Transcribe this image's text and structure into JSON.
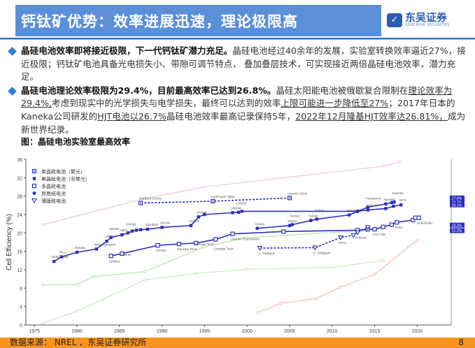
{
  "header": {
    "title": "钙钛矿优势：效率进展迅速，理论极限高",
    "logo_text_cn": "东吴证券",
    "logo_text_en": "SOOCHOW SECURITIES"
  },
  "bullets": [
    {
      "bold": "晶硅电池效率即将接近极限，下一代钙钛矿潜力充足。",
      "text": "晶硅电池经过40余年的发展，实验室转换效率逼近27%，接近极限；钙钛矿电池具备光电损失小、带隙可调节特点， 叠加叠层技术，可实现接近两倍晶硅电池效率，潜力充足。"
    },
    {
      "bold": "晶硅电池理论效率极限为29.4%，目前最高效率已达到26.8%。",
      "t1": "晶硅太阳能电池被俄歇复合限制在",
      "u1": "理论效率为29.4%,",
      "t2": "考虑到现实中的光学损失与电学损失，最终可以达到的效率",
      "u2": "上限可能进一步降低至27%",
      "t3": "；2017年日本的Kaneka公司研发的",
      "u3": "HJT电池以26.7%",
      "t4": "晶硅电池效率最高记录保持5年，",
      "u4": "2022年12月隆基HJT效率达26.81%，",
      "t5": "成为新世界纪录。"
    }
  ],
  "caption": "图：晶硅电池实验室最高效率",
  "chart_data": {
    "type": "line",
    "ylabel": "Cell Efficiency (%)",
    "xlim": [
      1974,
      2024
    ],
    "ylim": [
      0,
      36
    ],
    "xticks": [
      1975,
      1980,
      1985,
      1990,
      1995,
      2000,
      2005,
      2010,
      2015,
      2020
    ],
    "yticks": [
      0,
      4,
      8,
      12,
      16,
      20,
      24,
      28,
      32,
      36
    ],
    "legend_position": "top-left",
    "accent": "#2a2fbf",
    "series": [
      {
        "name": "单晶硅电池（聚光）",
        "marker": "square-dot",
        "dashed": true,
        "points": [
          [
            1987.5,
            26.5
          ],
          [
            1996,
            26.9
          ],
          [
            2005,
            27.6
          ]
        ],
        "labels": [
          "Stanford (140x)",
          "SunPower (96x)",
          "Amonix (92x)"
        ]
      },
      {
        "name": "单晶硅电池（非聚光）",
        "marker": "square",
        "dashed": false,
        "points": [
          [
            1977.3,
            13.8
          ],
          [
            1978.2,
            14.8
          ],
          [
            1980,
            15.8
          ],
          [
            1982.3,
            16.5
          ],
          [
            1983.5,
            18.2
          ],
          [
            1984,
            19
          ],
          [
            1985.3,
            19.6
          ],
          [
            1986,
            20
          ],
          [
            1986.5,
            20.4
          ],
          [
            1987,
            20.6
          ],
          [
            1987.5,
            20.7
          ],
          [
            1988.3,
            20.8
          ],
          [
            1990,
            21.2
          ],
          [
            1993.4,
            21.6
          ],
          [
            1994.3,
            23.5
          ],
          [
            1995,
            24
          ],
          [
            1998.3,
            24.4
          ],
          [
            1999,
            24.5
          ],
          [
            1999.4,
            24.7
          ],
          [
            2013,
            24.7
          ],
          [
            2014.2,
            25
          ],
          [
            2016.3,
            25.3
          ],
          [
            2017.2,
            25.8
          ],
          [
            2018.1,
            26.1
          ]
        ],
        "labels": [
          "Mobil Solar",
          "RCA",
          "Sandia",
          "Westinghouse",
          "ARCO",
          "UNSW",
          "Spire",
          "UNSW",
          "",
          "",
          "",
          "Stanford",
          "UNSW",
          "UNSW",
          "UNSW",
          "",
          "UNSW",
          "UNSW",
          "",
          "",
          "Solexel",
          "",
          "",
          "ISFH"
        ]
      },
      {
        "name": "多晶硅电池",
        "marker": "open-square",
        "dashed": false,
        "points": [
          [
            1984,
            15
          ],
          [
            1985.3,
            15.5
          ],
          [
            1989.5,
            17.3
          ],
          [
            1992,
            17.6
          ],
          [
            1994,
            17.8
          ],
          [
            1996.3,
            18.6
          ],
          [
            1998.3,
            19.8
          ],
          [
            2004.3,
            20.3
          ],
          [
            2013,
            20.6
          ],
          [
            2014.2,
            20.8
          ],
          [
            2015,
            20.8
          ],
          [
            2016,
            21.3
          ],
          [
            2017,
            21.8
          ],
          [
            2017.6,
            22.3
          ],
          [
            2019.5,
            22.8
          ],
          [
            2019.8,
            23.3
          ],
          [
            2020.2,
            23.3
          ]
        ],
        "labels": [
          "Solarex",
          "Solarex",
          "UNSW",
          "Georgia Tech",
          "Georgia Tech",
          "Georgia Tech",
          "UNSW / Eurosolare",
          "",
          "",
          "",
          "FhG-ISE",
          "",
          "",
          "Trina",
          "",
          "",
          "JinkoSolar"
        ]
      },
      {
        "name": "异质结电池",
        "marker": "circle",
        "dashed": false,
        "points": [
          [
            2001.2,
            21
          ],
          [
            2005,
            21.6
          ],
          [
            2005.3,
            21.8
          ],
          [
            2007.5,
            22.7
          ],
          [
            2008.2,
            23
          ],
          [
            2012,
            23.9
          ],
          [
            2013,
            24.7
          ],
          [
            2014.2,
            25.6
          ],
          [
            2016.3,
            26.3
          ],
          [
            2017,
            26.6
          ],
          [
            2017.3,
            26.7
          ]
        ],
        "labels": [
          "Sanyo",
          "Sanyo",
          "Sanyo",
          "Sanyo",
          "Sanyo",
          "Panasonic",
          "",
          "Panasonic",
          "Kaneka",
          "",
          "Kaneka"
        ]
      },
      {
        "name": "薄膜硅电池",
        "marker": "triangle",
        "dashed": true,
        "points": [
          [
            2001.5,
            16.7
          ],
          [
            2008,
            16.8
          ],
          [
            2011,
            19
          ],
          [
            2012.5,
            19.5
          ],
          [
            2013,
            20.1
          ],
          [
            2014.2,
            21.2
          ]
        ],
        "labels": [
          "U. Stuttgart",
          "U. Stuttgart",
          "ISFH",
          "",
          "Solexel",
          ""
        ]
      }
    ],
    "background_series": [
      {
        "color": "#f0c8e6",
        "points": [
          [
            1976,
            21.8
          ],
          [
            1988,
            27.5
          ],
          [
            1995,
            30
          ],
          [
            2016,
            34.5
          ],
          [
            2018,
            35.5
          ]
        ]
      },
      {
        "color": "#bfe3b4",
        "points": [
          [
            1976,
            8.7
          ],
          [
            1980,
            8.8
          ],
          [
            1982,
            10.5
          ],
          [
            1988,
            11.6
          ],
          [
            1995,
            17
          ],
          [
            2000,
            19
          ],
          [
            2014,
            20.5
          ]
        ]
      },
      {
        "color": "#cfe8c8",
        "points": [
          [
            1976,
            0.4
          ],
          [
            1980,
            3
          ],
          [
            1983,
            5.5
          ],
          [
            1988,
            9.8
          ],
          [
            1994,
            11.2
          ],
          [
            2000,
            12.1
          ],
          [
            2010,
            12.5
          ],
          [
            2016,
            14
          ]
        ]
      },
      {
        "color": "#f3c3b8",
        "points": [
          [
            2001.3,
            2.7
          ],
          [
            2004,
            4.7
          ],
          [
            2008,
            5.7
          ],
          [
            2011,
            8.2
          ],
          [
            2015,
            11
          ],
          [
            2019,
            17
          ],
          [
            2020,
            18.3
          ]
        ]
      }
    ],
    "right_labels": [
      "27.6%",
      "26.7%",
      "26.1%",
      "23.3%",
      "21.2%"
    ]
  },
  "footer": {
    "source": "数据来源： NREL 、东吴证券研究所",
    "page": "8"
  }
}
